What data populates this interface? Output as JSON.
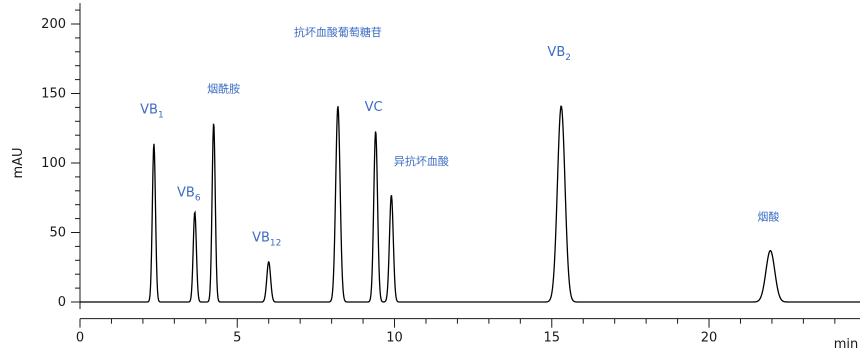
{
  "chart_data": {
    "type": "line",
    "xlabel": "min",
    "ylabel": "mAU",
    "xlim": [
      0,
      24.8
    ],
    "ylim": [
      -5,
      215
    ],
    "x_ticks": [
      0,
      5,
      10,
      15,
      20
    ],
    "y_ticks": [
      0,
      50,
      100,
      150,
      200
    ],
    "x_minor_step": 1,
    "y_minor_step": 10,
    "grid": false,
    "line_color": "#000000",
    "label_color": "#3b6cc4",
    "baseline": 0,
    "peaks": [
      {
        "label": "VB",
        "sub": "1",
        "rt": 2.35,
        "height": 114,
        "width": 0.05
      },
      {
        "label": "VB",
        "sub": "6",
        "rt": 3.65,
        "height": 65,
        "width": 0.05
      },
      {
        "label": "烟酰胺",
        "sub": "",
        "rt": 4.25,
        "height": 129,
        "width": 0.05
      },
      {
        "label": "VB",
        "sub": "12",
        "rt": 6.0,
        "height": 29,
        "width": 0.06
      },
      {
        "label": "抗坏血酸葡萄糖苷",
        "sub": "",
        "rt": 8.2,
        "height": 141,
        "width": 0.07
      },
      {
        "label": "VC",
        "sub": "",
        "rt": 9.4,
        "height": 123,
        "width": 0.06
      },
      {
        "label": "异抗坏血酸",
        "sub": "",
        "rt": 9.9,
        "height": 77,
        "width": 0.06
      },
      {
        "label": "VB",
        "sub": "2",
        "rt": 15.3,
        "height": 141,
        "width": 0.12
      },
      {
        "label": "烟酸",
        "sub": "",
        "rt": 21.95,
        "height": 37,
        "width": 0.14
      }
    ]
  }
}
